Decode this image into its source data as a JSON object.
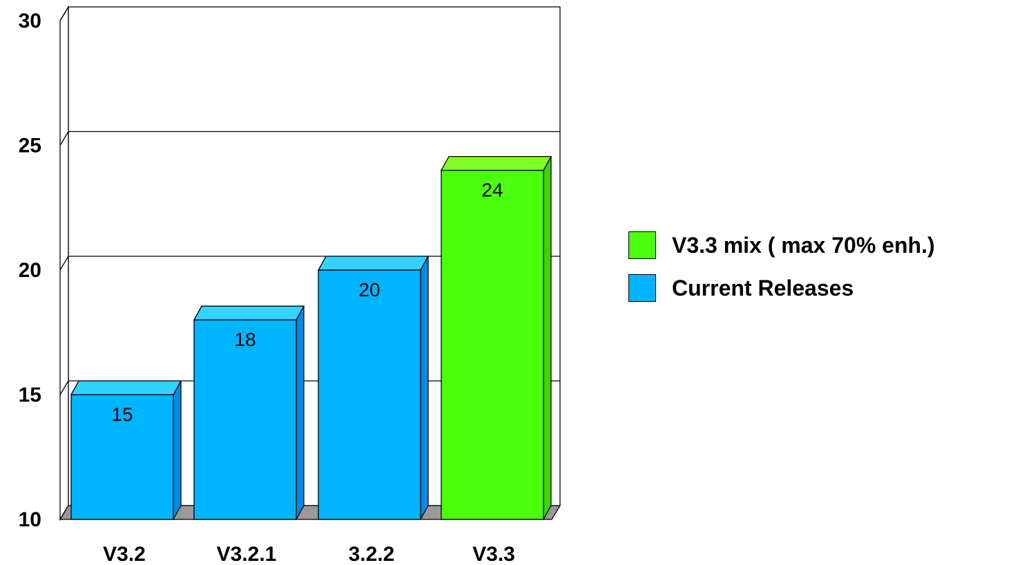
{
  "chart_data": {
    "type": "bar",
    "style": "3d",
    "categories": [
      "V3.2",
      "V3.2.1",
      "3.2.2",
      "V3.3"
    ],
    "values": [
      15,
      18,
      20,
      24
    ],
    "bar_series": [
      "Current Releases",
      "Current Releases",
      "Current Releases",
      "V3.3 mix ( max 70% enh.)"
    ],
    "ylim": [
      10,
      30
    ],
    "yticks": [
      10,
      15,
      20,
      25,
      30
    ],
    "grid": true,
    "legend_position": "right",
    "series": [
      {
        "name": "V3.3 mix ( max 70% enh.)",
        "color": "#4cff0c"
      },
      {
        "name": "Current Releases",
        "color": "#00b4ff"
      }
    ]
  },
  "colors": {
    "floor": "#999999",
    "blue_top": "#33d2ff",
    "blue_side": "#008ce6",
    "green_top": "#82ff26",
    "green_side": "#3fd10c"
  }
}
